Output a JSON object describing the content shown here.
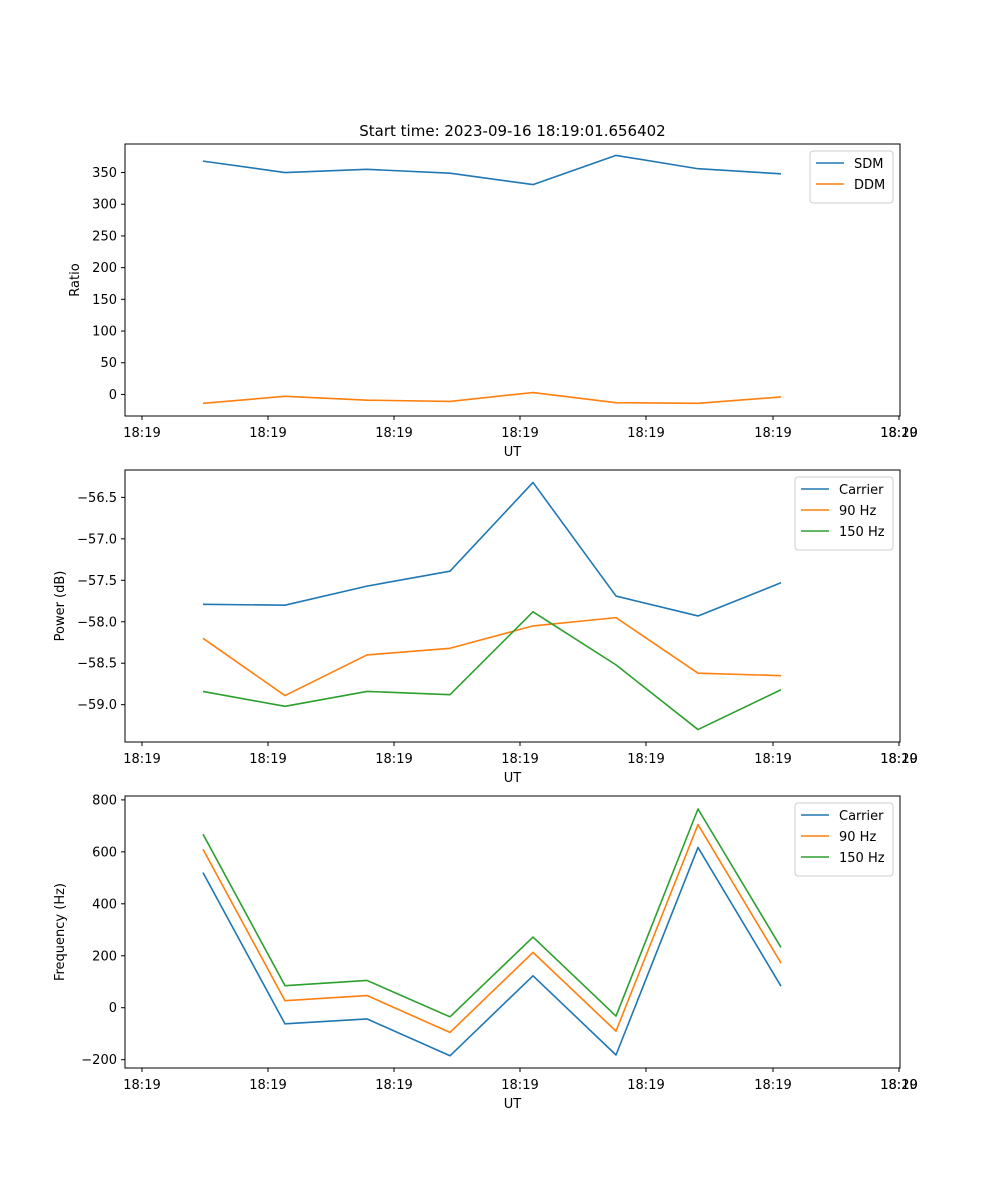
{
  "chart_data": [
    {
      "type": "line",
      "title": "Start time: 2023-09-16 18:19:01.656402",
      "xlabel": "UT",
      "ylabel": "Ratio",
      "ylim": [
        -34,
        395
      ],
      "yticks": [
        0,
        50,
        100,
        150,
        200,
        250,
        300,
        350
      ],
      "xtick_labels": [
        "18:19",
        "18:19",
        "18:19",
        "18:19",
        "18:19",
        "18:19",
        "18:19",
        "18:20"
      ],
      "grid": false,
      "legend_position": "top-right",
      "series": [
        {
          "name": "SDM",
          "color": "#1f77b4",
          "values": [
            368,
            350,
            355,
            349,
            331,
            377,
            356,
            348
          ]
        },
        {
          "name": "DDM",
          "color": "#ff7f0e",
          "values": [
            -14,
            -3,
            -9,
            -11,
            3,
            -13,
            -14,
            -4
          ]
        }
      ]
    },
    {
      "type": "line",
      "title": "",
      "xlabel": "UT",
      "ylabel": "Power (dB)",
      "ylim": [
        -59.45,
        -56.17
      ],
      "yticks": [
        -59.0,
        -58.5,
        -58.0,
        -57.5,
        -57.0,
        -56.5
      ],
      "ytick_labels": [
        "−59.0",
        "−58.5",
        "−58.0",
        "−57.5",
        "−57.0",
        "−56.5"
      ],
      "xtick_labels": [
        "18:19",
        "18:19",
        "18:19",
        "18:19",
        "18:19",
        "18:19",
        "18:19",
        "18:20"
      ],
      "grid": false,
      "legend_position": "top-right",
      "series": [
        {
          "name": "Carrier",
          "color": "#1f77b4",
          "values": [
            -57.79,
            -57.8,
            -57.57,
            -57.39,
            -56.32,
            -57.69,
            -57.93,
            -57.53
          ]
        },
        {
          "name": "90 Hz",
          "color": "#ff7f0e",
          "values": [
            -58.2,
            -58.89,
            -58.4,
            -58.32,
            -58.05,
            -57.95,
            -58.62,
            -58.65
          ]
        },
        {
          "name": "150 Hz",
          "color": "#2ca02c",
          "values": [
            -58.84,
            -59.02,
            -58.84,
            -58.88,
            -57.88,
            -58.52,
            -59.3,
            -58.82
          ]
        }
      ]
    },
    {
      "type": "line",
      "title": "",
      "xlabel": "UT",
      "ylabel": "Frequency (Hz)",
      "ylim": [
        -232,
        815
      ],
      "yticks": [
        -200,
        0,
        200,
        400,
        600,
        800
      ],
      "ytick_labels": [
        "−200",
        "0",
        "200",
        "400",
        "600",
        "800"
      ],
      "xtick_labels": [
        "18:19",
        "18:19",
        "18:19",
        "18:19",
        "18:19",
        "18:19",
        "18:19",
        "18:20"
      ],
      "grid": false,
      "legend_position": "top-right",
      "series": [
        {
          "name": "Carrier",
          "color": "#1f77b4",
          "values": [
            520,
            -62,
            -43,
            -185,
            123,
            -182,
            617,
            83
          ]
        },
        {
          "name": "90 Hz",
          "color": "#ff7f0e",
          "values": [
            610,
            27,
            47,
            -95,
            213,
            -90,
            705,
            172
          ]
        },
        {
          "name": "150 Hz",
          "color": "#2ca02c",
          "values": [
            668,
            85,
            105,
            -35,
            272,
            -32,
            765,
            232
          ]
        }
      ]
    }
  ]
}
